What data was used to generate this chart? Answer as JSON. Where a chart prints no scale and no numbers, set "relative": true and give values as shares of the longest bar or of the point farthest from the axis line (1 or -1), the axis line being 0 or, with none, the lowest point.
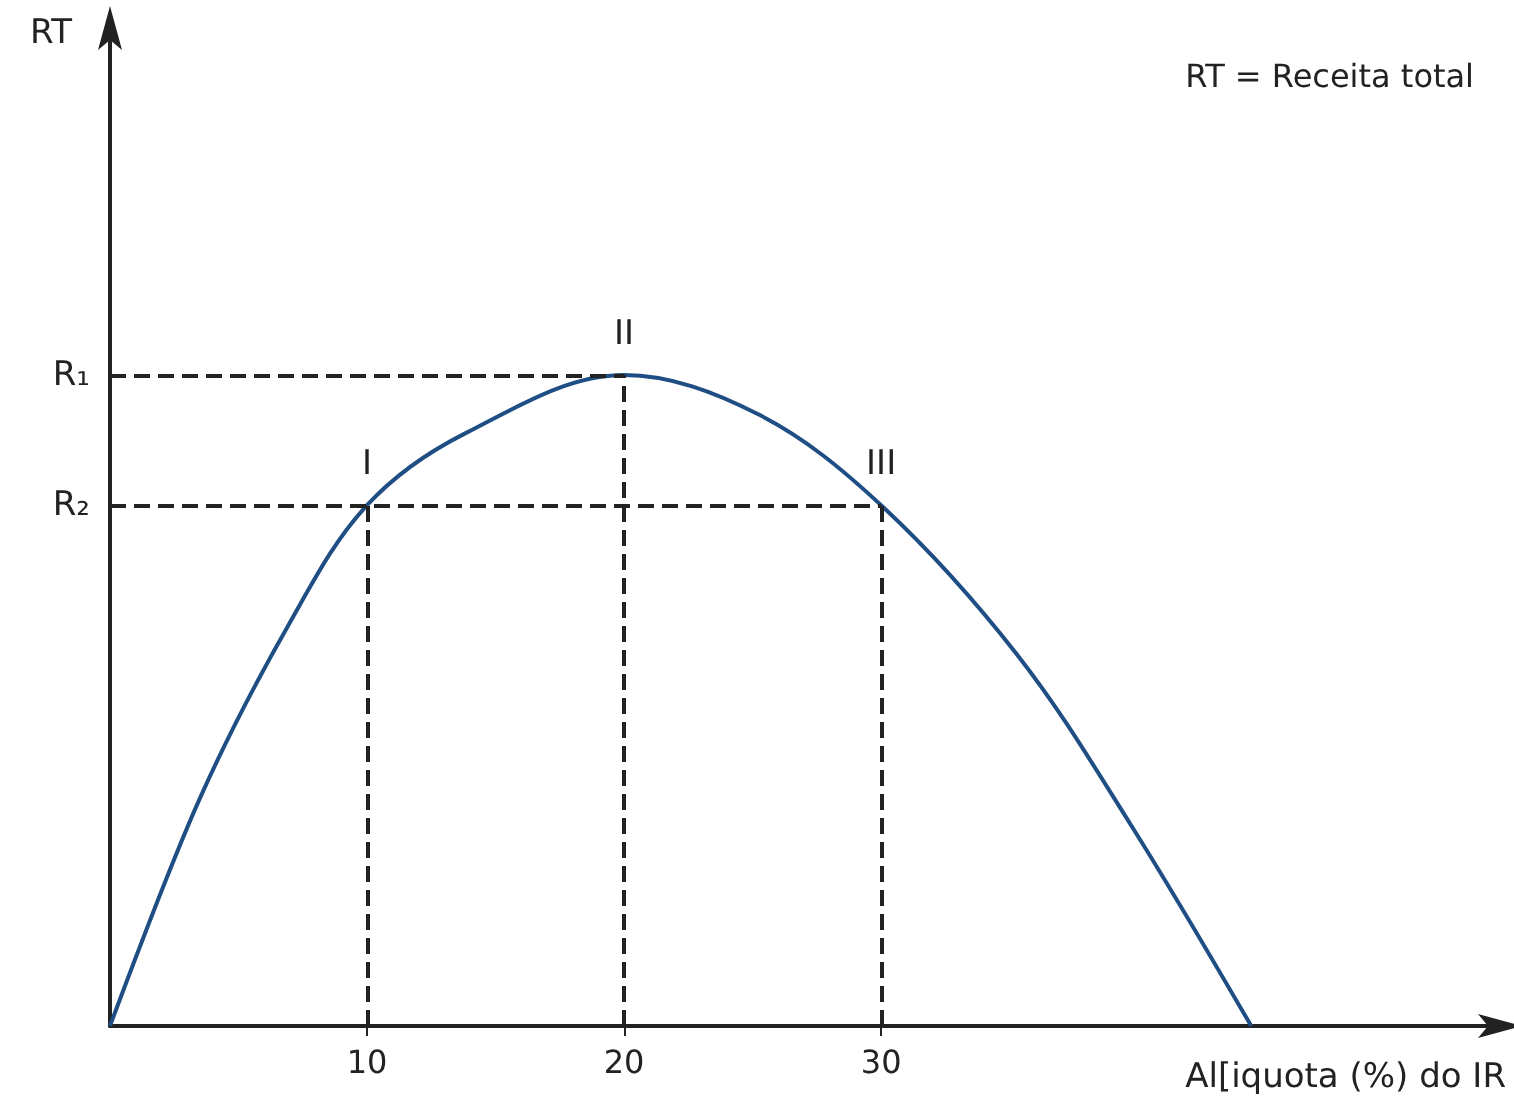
{
  "chart_data": {
    "type": "line",
    "relative": true,
    "xlabel": "Al[iquota (%) do IR",
    "x": [
      0,
      3.5,
      7,
      10,
      13.8,
      20,
      25.2,
      30,
      35.3,
      39.7,
      44.4
    ],
    "series": [
      {
        "color": "#1f4e84",
        "values": [
          0,
          0.35,
          0.62,
          0.8,
          0.91,
          1,
          0.94,
          0.8,
          0.57,
          0.31,
          0
        ]
      }
    ],
    "xlim": [
      0,
      54
    ],
    "xticks": [
      10,
      20,
      30
    ],
    "tick_labels": "x",
    "grid": false,
    "marker": "none",
    "line_style": "solid",
    "ref_lines": [
      {
        "axis": "y",
        "value": 1,
        "label": "R₁",
        "line_style": "dashed"
      },
      {
        "axis": "y",
        "value": 0.8,
        "label": "R₂",
        "line_style": "dashed"
      },
      {
        "axis": "x",
        "value": 10,
        "label": null,
        "line_style": "dashed"
      },
      {
        "axis": "x",
        "value": 20,
        "label": null,
        "line_style": "dashed"
      },
      {
        "axis": "x",
        "value": 30,
        "label": null,
        "line_style": "dashed"
      }
    ],
    "annotations": [
      "RT = Receita total",
      "RT",
      {
        "text": "I",
        "x": 10,
        "y": 0.8
      },
      {
        "text": "II",
        "x": 20,
        "y": 1
      },
      {
        "text": "III",
        "x": 30,
        "y": 0.8
      }
    ]
  }
}
